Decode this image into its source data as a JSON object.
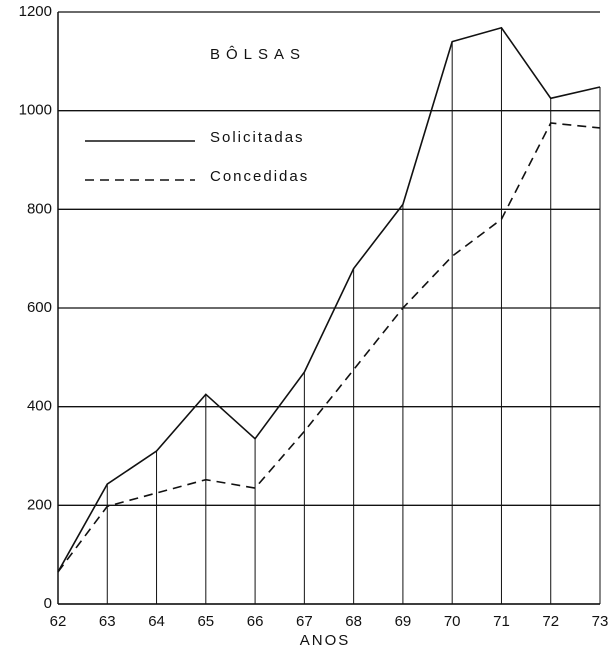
{
  "chart_data": {
    "type": "line",
    "title": "BÔLSAS",
    "x_label": "ANOS",
    "x": [
      62,
      63,
      64,
      65,
      66,
      67,
      68,
      69,
      70,
      71,
      72,
      73
    ],
    "series": [
      {
        "name": "Solicitadas",
        "color": "#111111",
        "dash": "solid",
        "values": [
          65,
          243,
          310,
          425,
          335,
          470,
          680,
          810,
          1140,
          1168,
          1025,
          1048
        ]
      },
      {
        "name": "Concedidas",
        "color": "#111111",
        "dash": "dashed",
        "values": [
          65,
          198,
          225,
          252,
          235,
          350,
          475,
          600,
          705,
          780,
          975,
          965
        ]
      }
    ],
    "xlim": [
      62,
      73
    ],
    "xticks": [
      62,
      63,
      64,
      65,
      66,
      67,
      68,
      69,
      70,
      71,
      72,
      73
    ],
    "ylim": [
      0,
      1200
    ],
    "yticks": [
      0,
      200,
      400,
      600,
      800,
      1000,
      1200
    ],
    "grid": true,
    "legend": "upper left"
  }
}
